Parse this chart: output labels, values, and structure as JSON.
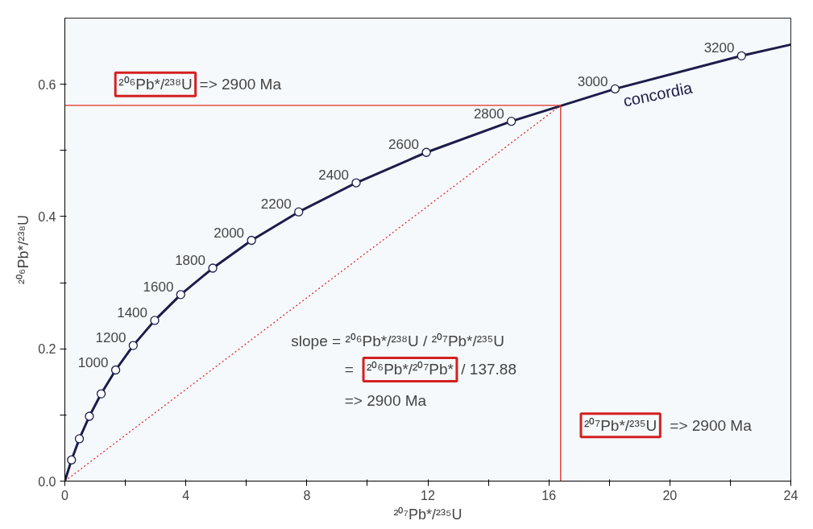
{
  "chart_data": {
    "type": "line",
    "xlabel": "²⁰⁷Pb*/²³⁵U",
    "ylabel": "²⁰⁶Pb*/²³⁸U",
    "xlim": [
      0,
      24
    ],
    "ylim": [
      0,
      0.7
    ],
    "xticks": [
      0,
      {
        "value": 2,
        "label": null
      },
      4,
      {
        "value": 6,
        "label": null
      },
      8,
      {
        "value": 10,
        "label": null
      },
      12,
      {
        "value": 14,
        "label": null
      },
      16,
      {
        "value": 18,
        "label": null
      },
      20,
      {
        "value": 22,
        "label": null
      },
      24
    ],
    "yticks": [
      {
        "value": 0,
        "label": "0.0"
      },
      {
        "value": 0.1,
        "label": null
      },
      {
        "value": 0.2,
        "label": "0.2"
      },
      {
        "value": 0.3,
        "label": null
      },
      {
        "value": 0.4,
        "label": "0.4"
      },
      {
        "value": 0.5,
        "label": null
      },
      {
        "value": 0.6,
        "label": "0.6"
      }
    ],
    "grid": false,
    "series": [
      {
        "name": "concordia",
        "color": "#1c1c4a",
        "marker": "none",
        "line_style": "solid",
        "x": [
          0,
          0.22,
          0.48,
          0.81,
          1.2,
          1.68,
          2.26,
          2.97,
          3.83,
          4.89,
          6.17,
          7.73,
          9.63,
          11.95,
          14.76,
          18.19,
          22.37,
          24
        ],
        "values": [
          0,
          0.032,
          0.064,
          0.098,
          0.132,
          0.168,
          0.205,
          0.243,
          0.282,
          0.322,
          0.364,
          0.407,
          0.451,
          0.497,
          0.544,
          0.593,
          0.643,
          0.66
        ]
      },
      {
        "type": "scatter",
        "color": "#1c1c4a",
        "marker": "circle",
        "x": [
          0.22,
          0.48,
          0.81,
          1.2,
          1.68,
          2.26,
          2.97,
          3.83,
          4.89,
          6.17,
          7.73,
          9.63,
          11.95,
          14.76,
          18.19,
          22.37
        ],
        "values": [
          0.032,
          0.064,
          0.098,
          0.132,
          0.168,
          0.205,
          0.243,
          0.282,
          0.322,
          0.364,
          0.407,
          0.451,
          0.497,
          0.544,
          0.593,
          0.643
        ]
      },
      {
        "color": "#e02b24",
        "marker": "none",
        "line_style": "solid",
        "x": [
          0,
          16.39
        ],
        "values": [
          0.568,
          0.568
        ]
      },
      {
        "color": "#e02b24",
        "marker": "none",
        "line_style": "solid",
        "x": [
          16.39,
          16.39
        ],
        "values": [
          0,
          0.568
        ]
      },
      {
        "color": "#e02b24",
        "marker": "none",
        "line_style": "dotted",
        "x": [
          0,
          16.39
        ],
        "values": [
          0,
          0.568
        ]
      }
    ],
    "annotations": [
      "²⁰⁶Pb*/²³⁸U",
      "=> 2900 Ma",
      "slope = ²⁰⁶Pb*/²³⁸U / ²⁰⁷Pb*/²³⁵U",
      "=",
      "²⁰⁶Pb*/²⁰⁷Pb*",
      "/ 137.88",
      "=> 2900 Ma",
      "²⁰⁷Pb*/²³⁵U",
      "=> 2900 Ma",
      {
        "text": "1000",
        "x": 1.677,
        "y": 0.1678
      },
      {
        "text": "1200",
        "x": 2.26,
        "y": 0.2046
      },
      {
        "text": "1400",
        "x": 2.97,
        "y": 0.2426
      },
      {
        "text": "1600",
        "x": 3.834,
        "y": 0.2817
      },
      {
        "text": "1800",
        "x": 4.887,
        "y": 0.3221
      },
      {
        "text": "2000",
        "x": 6.168,
        "y": 0.3638
      },
      {
        "text": "2200",
        "x": 7.729,
        "y": 0.4067
      },
      {
        "text": "2400",
        "x": 9.63,
        "y": 0.4511
      },
      {
        "text": "2600",
        "x": 11.945,
        "y": 0.4968
      },
      {
        "text": "2800",
        "x": 14.763,
        "y": 0.544
      },
      {
        "text": "3000",
        "x": 18.194,
        "y": 0.5926
      },
      {
        "text": "3200",
        "x": 22.374,
        "y": 0.6428
      }
    ]
  }
}
